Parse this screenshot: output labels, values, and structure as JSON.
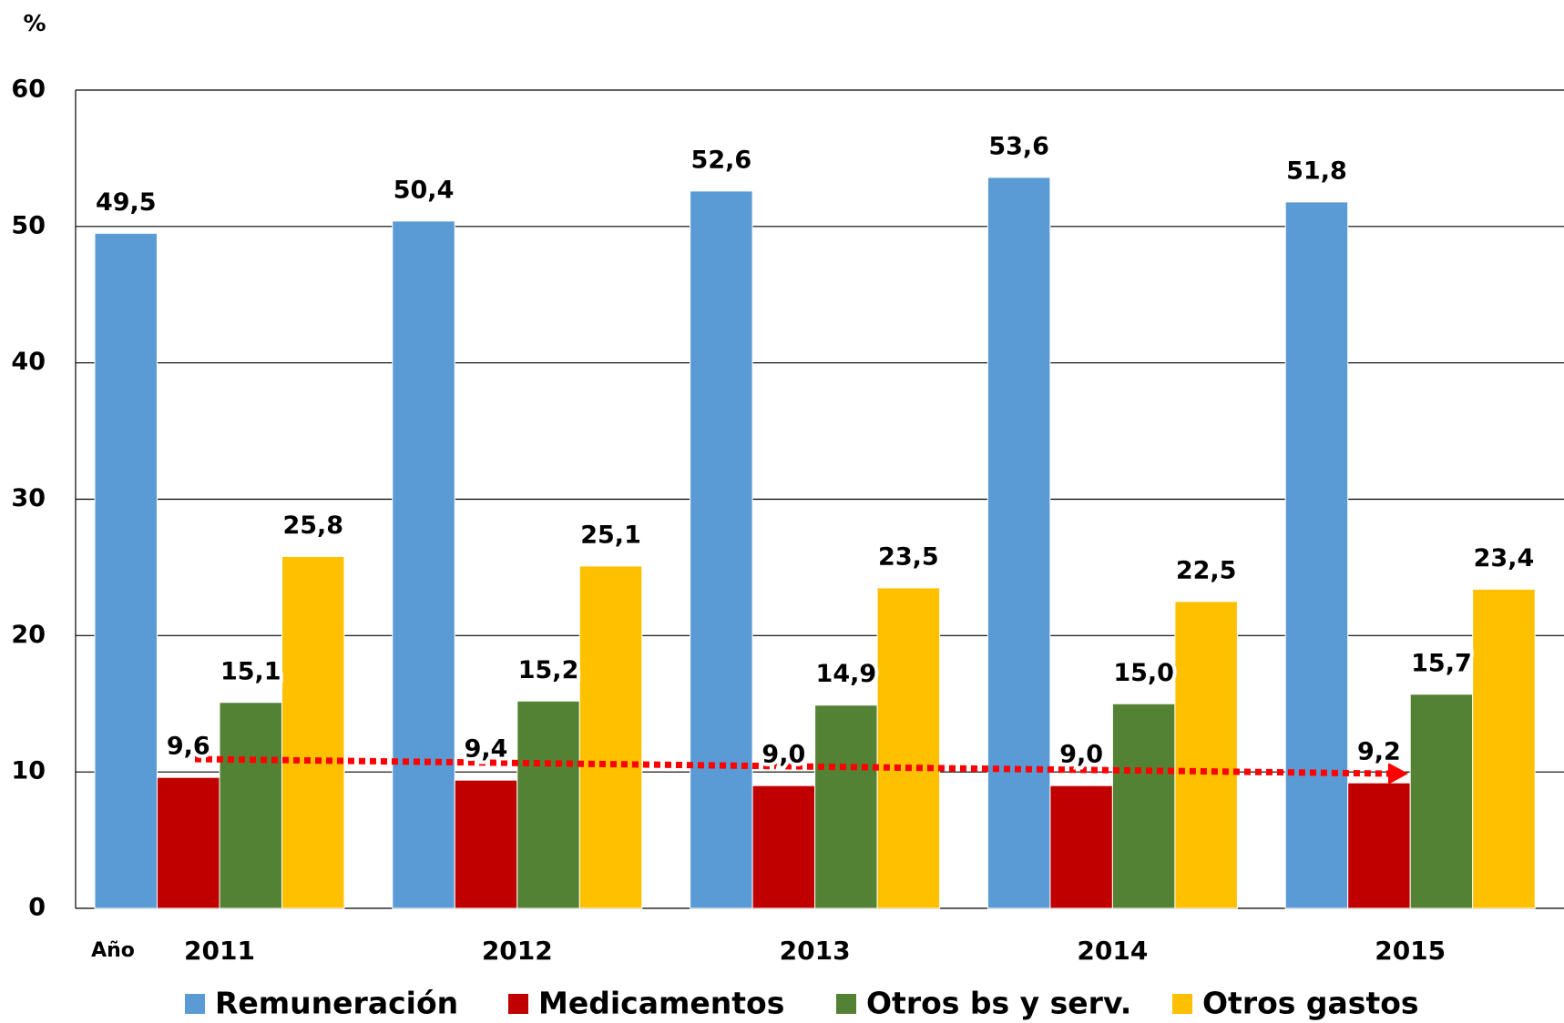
{
  "chart_data": {
    "type": "bar",
    "y_label": "%",
    "x_label": "Año",
    "categories": [
      "2011",
      "2012",
      "2013",
      "2014",
      "2015"
    ],
    "series": [
      {
        "name": "Remuneración",
        "color": "#5b9bd5",
        "values": [
          49.5,
          50.4,
          52.6,
          53.6,
          51.8
        ],
        "value_labels": [
          "49,5",
          "50,4",
          "52,6",
          "53,6",
          "51,8"
        ]
      },
      {
        "name": "Medicamentos",
        "color": "#c00000",
        "values": [
          9.6,
          9.4,
          9.0,
          9.0,
          9.2
        ],
        "value_labels": [
          "9,6",
          "9,4",
          "9,0",
          "9,0",
          "9,2"
        ]
      },
      {
        "name": "Otros bs y serv.",
        "color": "#548235",
        "values": [
          15.1,
          15.2,
          14.9,
          15.0,
          15.7
        ],
        "value_labels": [
          "15,1",
          "15,2",
          "14,9",
          "15,0",
          "15,7"
        ]
      },
      {
        "name": "Otros gastos",
        "color": "#ffc000",
        "values": [
          25.8,
          25.1,
          23.5,
          22.5,
          23.4
        ],
        "value_labels": [
          "25,8",
          "25,1",
          "23,5",
          "22,5",
          "23,4"
        ]
      }
    ],
    "ylim": [
      0,
      60
    ],
    "yticks": [
      0,
      10,
      20,
      30,
      40,
      50,
      60
    ],
    "grid": true
  }
}
